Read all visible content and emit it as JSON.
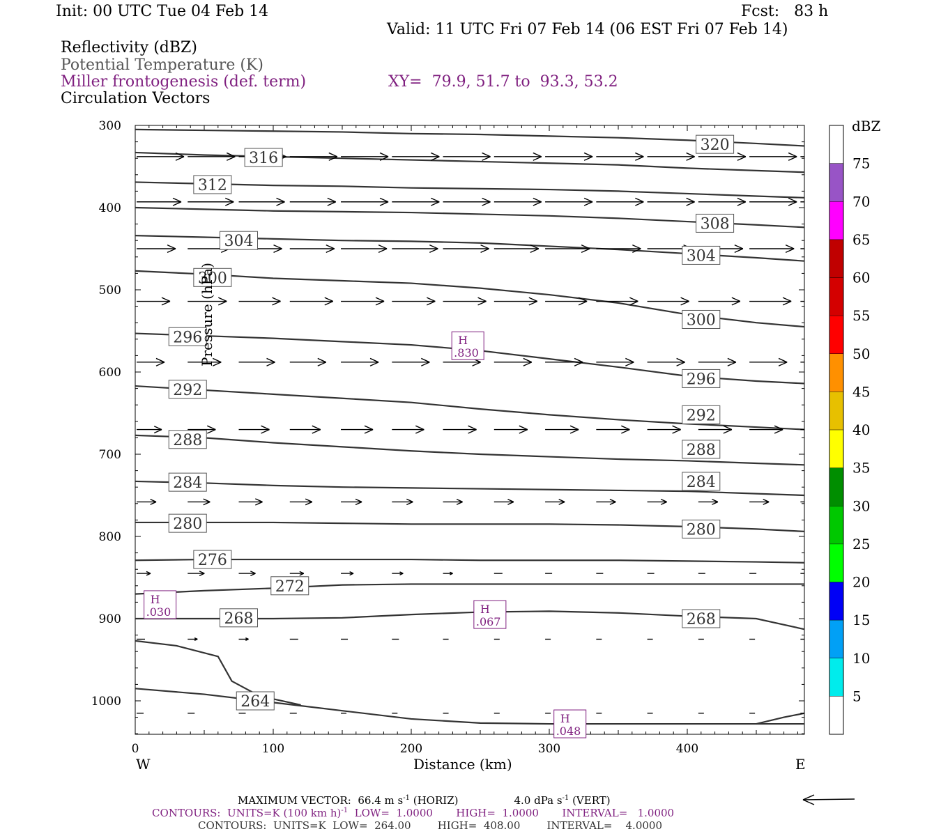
{
  "header": {
    "init": "Init: 00 UTC Tue 04 Feb 14",
    "fcst": "Fcst:   83 h",
    "valid": "Valid: 11 UTC Fri 07 Feb 14 (06 EST Fri 07 Feb 14)",
    "fields": [
      "Reflectivity (dBZ)",
      "Potential Temperature (K)",
      "Miller frontogenesis (def. term)",
      "Circulation Vectors"
    ],
    "xy": "XY=  79.9, 51.7 to  93.3, 53.2"
  },
  "colors": {
    "theta": "#333333",
    "fronto": "#7f1f7f",
    "vectors": "#000000"
  },
  "chart_data": {
    "type": "line",
    "title": "",
    "xlabel": "Distance (km)",
    "ylabel": "Pressure (hPa)",
    "x_ticks": [
      0,
      100,
      200,
      300,
      400
    ],
    "y_ticks": [
      300,
      400,
      500,
      600,
      700,
      800,
      900,
      1000
    ],
    "xlim": [
      0,
      485
    ],
    "ylim": [
      300,
      1040
    ],
    "x_end_labels": {
      "left": "W",
      "right": "E"
    },
    "theta_x": [
      0,
      50,
      100,
      150,
      200,
      250,
      300,
      350,
      400,
      450,
      485
    ],
    "theta_series": [
      {
        "name": "320",
        "label": "320",
        "lx": 420,
        "ly": 323,
        "values": [
          305,
          306,
          307,
          308,
          310,
          311,
          313,
          315,
          318,
          322,
          325
        ]
      },
      {
        "name": "316",
        "label": "316",
        "lx": 93,
        "ly": 339,
        "values": [
          333,
          336,
          338,
          340,
          342,
          344,
          346,
          348,
          352,
          355,
          357
        ]
      },
      {
        "name": "312",
        "label": "312",
        "lx": 56,
        "ly": 372,
        "values": [
          369,
          371,
          373,
          374,
          376,
          377,
          378,
          380,
          383,
          386,
          388
        ]
      },
      {
        "name": "308",
        "label": "308",
        "lx": 420,
        "ly": 419,
        "values": [
          400,
          402,
          404,
          405,
          406,
          408,
          410,
          413,
          417,
          421,
          424
        ]
      },
      {
        "name": "304",
        "label": "304",
        "lx": 75,
        "ly": 440,
        "values": [
          434,
          436,
          438,
          440,
          441,
          443,
          447,
          451,
          456,
          461,
          465
        ]
      },
      {
        "name": "304",
        "label": "304",
        "lx": 410,
        "ly": 458,
        "values": []
      },
      {
        "name": "300",
        "label": "300",
        "lx": 56,
        "ly": 485,
        "values": [
          477,
          481,
          486,
          489,
          492,
          498,
          506,
          516,
          530,
          540,
          545
        ]
      },
      {
        "name": "300",
        "label": "300",
        "lx": 410,
        "ly": 536,
        "values": []
      },
      {
        "name": "296",
        "label": "296",
        "lx": 38,
        "ly": 557,
        "values": [
          553,
          556,
          559,
          563,
          567,
          574,
          584,
          594,
          605,
          611,
          614
        ]
      },
      {
        "name": "296",
        "label": "296",
        "lx": 410,
        "ly": 608,
        "values": []
      },
      {
        "name": "292",
        "label": "292",
        "lx": 38,
        "ly": 621,
        "values": [
          617,
          622,
          627,
          632,
          637,
          645,
          652,
          658,
          663,
          667,
          670
        ]
      },
      {
        "name": "292",
        "label": "292",
        "lx": 410,
        "ly": 652,
        "values": []
      },
      {
        "name": "288",
        "label": "288",
        "lx": 38,
        "ly": 682,
        "values": [
          677,
          680,
          686,
          691,
          696,
          700,
          703,
          706,
          708,
          711,
          713
        ]
      },
      {
        "name": "288",
        "label": "288",
        "lx": 410,
        "ly": 694,
        "values": []
      },
      {
        "name": "284",
        "label": "284",
        "lx": 38,
        "ly": 734,
        "values": [
          733,
          735,
          738,
          740,
          741,
          742,
          743,
          744,
          745,
          748,
          750
        ]
      },
      {
        "name": "284",
        "label": "284",
        "lx": 410,
        "ly": 733,
        "values": []
      },
      {
        "name": "280",
        "label": "280",
        "lx": 38,
        "ly": 784,
        "values": [
          783,
          783,
          783,
          784,
          785,
          785,
          785,
          786,
          788,
          791,
          794
        ]
      },
      {
        "name": "280",
        "label": "280",
        "lx": 410,
        "ly": 791,
        "values": []
      },
      {
        "name": "276",
        "label": "276",
        "lx": 56,
        "ly": 828,
        "values": [
          829,
          828,
          828,
          828,
          828,
          829,
          829,
          829,
          830,
          831,
          832
        ]
      },
      {
        "name": "272",
        "label": "272",
        "lx": 112,
        "ly": 860,
        "values": [
          870,
          866,
          863,
          859,
          858,
          858,
          858,
          858,
          858,
          858,
          858
        ]
      },
      {
        "name": "268",
        "label": "268",
        "lx": 75,
        "ly": 899,
        "values": [
          900,
          900,
          900,
          899,
          895,
          892,
          891,
          893,
          897,
          900,
          913
        ]
      },
      {
        "name": "268",
        "label": "268",
        "lx": 410,
        "ly": 900,
        "values": []
      },
      {
        "name": "264",
        "label": "264",
        "lx": 87,
        "ly": 1000,
        "values": [
          985,
          992,
          1002,
          1012,
          1022,
          1027,
          1028,
          1028,
          1028,
          1028,
          1028
        ]
      }
    ],
    "theta_extra_segments": [
      {
        "x": [
          0,
          30,
          60,
          70,
          90,
          120
        ],
        "values": [
          927,
          933,
          946,
          976,
          994,
          1005
        ]
      },
      {
        "x": [
          450,
          470,
          485
        ],
        "values": [
          1028,
          1020,
          1015
        ]
      }
    ],
    "frontogenesis_highs": [
      {
        "label": "H",
        "value": ".030",
        "x": 18,
        "p": 883
      },
      {
        "label": "H",
        "value": ".067",
        "x": 257,
        "p": 895
      },
      {
        "label": "H",
        "value": ".048",
        "x": 315,
        "p": 1028
      },
      {
        "label": "H",
        "value": ".830",
        "x": 241,
        "p": 568
      }
    ],
    "vector_rows": [
      {
        "p": 338,
        "u": [
          0.34,
          0.34,
          0.34,
          0.34,
          0.34,
          0.34,
          0.34,
          0.34,
          0.34,
          0.34,
          0.34,
          0.34,
          0.34,
          0.34
        ],
        "w": [
          0,
          0,
          0,
          0,
          0,
          0,
          0,
          0,
          0,
          0,
          0,
          0,
          0,
          0
        ]
      },
      {
        "p": 393,
        "u": [
          0.32,
          0.33,
          0.33,
          0.33,
          0.34,
          0.34,
          0.34,
          0.34,
          0.34,
          0.34,
          0.34,
          0.34,
          0.34,
          0.34
        ],
        "w": [
          0,
          0,
          0,
          0,
          0,
          0,
          0,
          0,
          0,
          0,
          0,
          0,
          0,
          0
        ]
      },
      {
        "p": 450,
        "u": [
          0.28,
          0.3,
          0.31,
          0.32,
          0.33,
          0.33,
          0.33,
          0.32,
          0.32,
          0.32,
          0.32,
          0.32,
          0.32,
          0.32
        ],
        "w": [
          0,
          0,
          0,
          0,
          0,
          0,
          0,
          0,
          0,
          0,
          0,
          0,
          0,
          0
        ]
      },
      {
        "p": 514,
        "u": [
          0.24,
          0.28,
          0.3,
          0.31,
          0.31,
          0.31,
          0.31,
          0.31,
          0.3,
          0.3,
          0.3,
          0.3,
          0.3,
          0.3
        ],
        "w": [
          0,
          0,
          0,
          0,
          0,
          0,
          0,
          0,
          0,
          0,
          0,
          0,
          0,
          0
        ]
      },
      {
        "p": 588,
        "u": [
          0.2,
          0.24,
          0.26,
          0.26,
          0.27,
          0.27,
          0.27,
          0.27,
          0.27,
          0.27,
          0.27,
          0.27,
          0.27,
          0.27
        ],
        "w": [
          0,
          0,
          0,
          0,
          0,
          0,
          0,
          0,
          0,
          0,
          0,
          0,
          0,
          0
        ]
      },
      {
        "p": 670,
        "u": [
          0.18,
          0.2,
          0.22,
          0.22,
          0.23,
          0.23,
          0.24,
          0.24,
          0.24,
          0.24,
          0.24,
          0.24,
          0.24,
          0.24
        ],
        "w": [
          0,
          0,
          0,
          0,
          0,
          0,
          0,
          0,
          0,
          0,
          0,
          0,
          0,
          0
        ]
      },
      {
        "p": 758,
        "u": [
          0.14,
          0.16,
          0.17,
          0.16,
          0.15,
          0.15,
          0.14,
          0.14,
          0.14,
          0.14,
          0.14,
          0.14,
          0.14,
          0.14
        ],
        "w": [
          0,
          0,
          0,
          0,
          0,
          0,
          0,
          0,
          0,
          0,
          0,
          0,
          0,
          0
        ]
      },
      {
        "p": 845,
        "u": [
          0.1,
          0.12,
          0.12,
          0.1,
          0.09,
          0.08,
          0.07,
          0.06,
          0.05,
          0.05,
          0.05,
          0.05,
          0.05,
          0.05
        ],
        "w": [
          0,
          0,
          0,
          0,
          0,
          0,
          0,
          0,
          0,
          0,
          0,
          0,
          0,
          0
        ]
      },
      {
        "p": 925,
        "u": [
          0.06,
          0.07,
          0.07,
          0.06,
          0.05,
          0.05,
          0.04,
          0.04,
          0.04,
          0.04,
          0.04,
          0.04,
          0.04,
          0.04
        ],
        "w": [
          0,
          0,
          0,
          0,
          0,
          0,
          0,
          0,
          0,
          0,
          0,
          0,
          0,
          0
        ]
      },
      {
        "p": 1015,
        "u": [
          0.05,
          0.05,
          0.05,
          0.05,
          0.04,
          0.04,
          0.04,
          0.04,
          0.04,
          0.04,
          0.04,
          0.04,
          0.04,
          0.04
        ],
        "w": [
          0,
          0,
          0,
          0,
          0,
          0,
          0,
          0,
          0,
          0,
          0,
          0,
          0,
          0
        ]
      }
    ],
    "vector_x": [
      0,
      37,
      74,
      111,
      148,
      185,
      222,
      259,
      296,
      333,
      370,
      407,
      444,
      481
    ]
  },
  "colorbar": {
    "unit": "dBZ",
    "labels": [
      "75",
      "70",
      "65",
      "60",
      "55",
      "50",
      "45",
      "40",
      "35",
      "30",
      "25",
      "20",
      "15",
      "10",
      "5"
    ],
    "colors": [
      "#ffffff",
      "#9854c6",
      "#ff00ff",
      "#c00000",
      "#d40000",
      "#ff0000",
      "#ff9000",
      "#e7c000",
      "#ffff00",
      "#008e00",
      "#00c800",
      "#00ff00",
      "#0000f6",
      "#01a0f6",
      "#00ecec",
      "#ffffff"
    ]
  },
  "footer": {
    "max_vector": "MAXIMUM VECTOR:  66.4 m s",
    "max_vector_unit": "-1",
    "horiz": " (HORIZ)",
    "vert_val": "4.0 dPa s",
    "vert_unit": "-1",
    "vert": " (VERT)",
    "contours_fronto_a": "CONTOURS:  UNITS=K (100 km h)",
    "contours_fronto_exp": "-1",
    "contours_fronto_b": "  LOW=  1.0000       HIGH=  1.0000       INTERVAL=   1.0000",
    "contours_theta": "CONTOURS:  UNITS=K  LOW=  264.00        HIGH=  408.00        INTERVAL=    4.0000"
  }
}
